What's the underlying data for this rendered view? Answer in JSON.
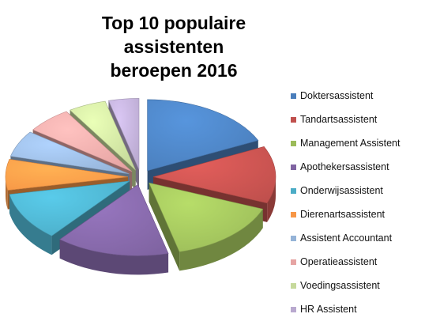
{
  "chart_data": {
    "type": "pie",
    "title_line1": "Top 10 populaire assistenten",
    "title_line2": "beroepen 2016",
    "categories": [
      "Doktersassistent",
      "Tandartsassistent",
      "Management Assistent",
      "Apothekersassistent",
      "Onderwijsassistent",
      "Dierenartsassistent",
      "Assistent Accountant",
      "Operatieassistent",
      "Voedingsassistent",
      "HR Assistent"
    ],
    "values": [
      18,
      13,
      15,
      15,
      11,
      7,
      6,
      6,
      5,
      4
    ],
    "colors": [
      "#4a7ebb",
      "#c0504d",
      "#9bbb59",
      "#8064a2",
      "#4bacc6",
      "#f79646",
      "#95b3d7",
      "#e6a4a3",
      "#c6d99b",
      "#b9a9cf"
    ],
    "exploded": true,
    "style": "3d",
    "legend_position": "right"
  }
}
